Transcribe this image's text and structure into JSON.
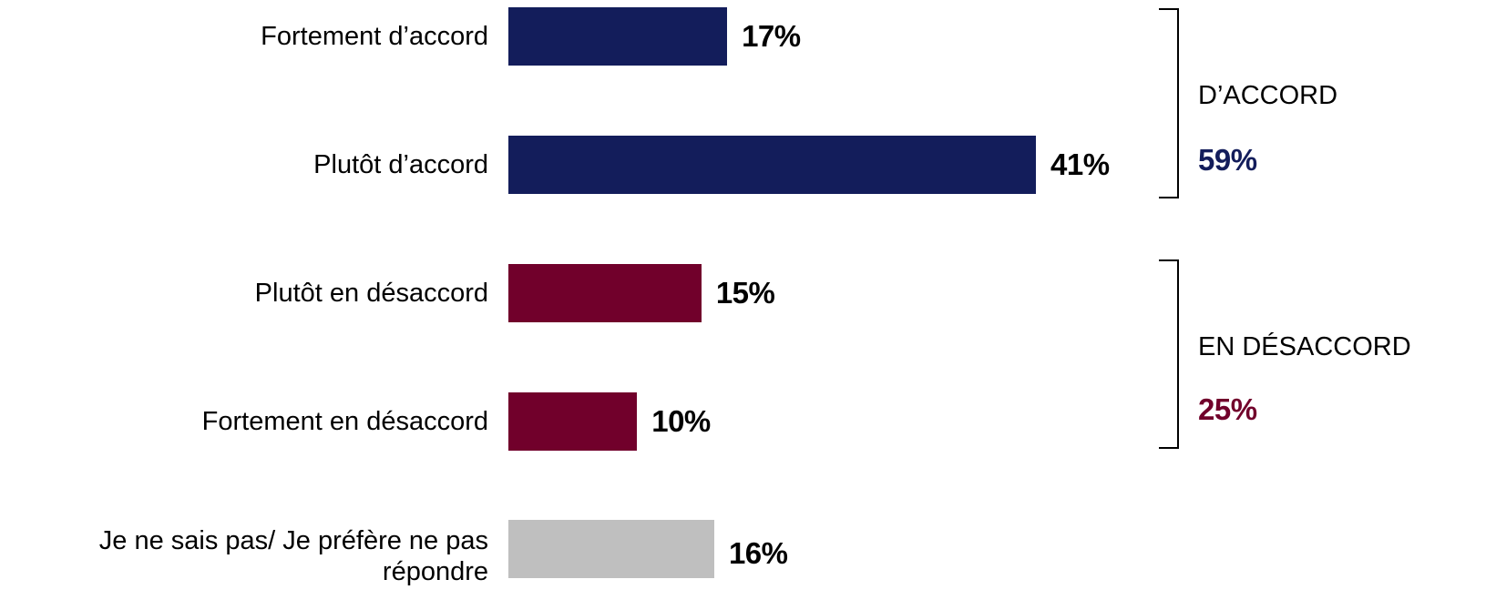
{
  "chart_data": {
    "type": "bar",
    "orientation": "horizontal",
    "categories": [
      "Fortement d’accord",
      "Plutôt d’accord",
      "Plutôt en désaccord",
      "Fortement en désaccord",
      "Je ne sais pas/ Je préfère ne pas répondre"
    ],
    "values": [
      17,
      41,
      15,
      10,
      16
    ],
    "value_labels": [
      "17%",
      "41%",
      "15%",
      "10%",
      "16%"
    ],
    "colors": [
      "#131d5b",
      "#131d5b",
      "#71002b",
      "#71002b",
      "#bfbfbf"
    ],
    "xlim": [
      0,
      41
    ],
    "grid": false,
    "groups": [
      {
        "label": "D’ACCORD",
        "total": "59%",
        "color": "#131d5b",
        "members": [
          0,
          1
        ]
      },
      {
        "label": "EN DÉSACCORD",
        "total": "25%",
        "color": "#71002b",
        "members": [
          2,
          3
        ]
      }
    ]
  }
}
